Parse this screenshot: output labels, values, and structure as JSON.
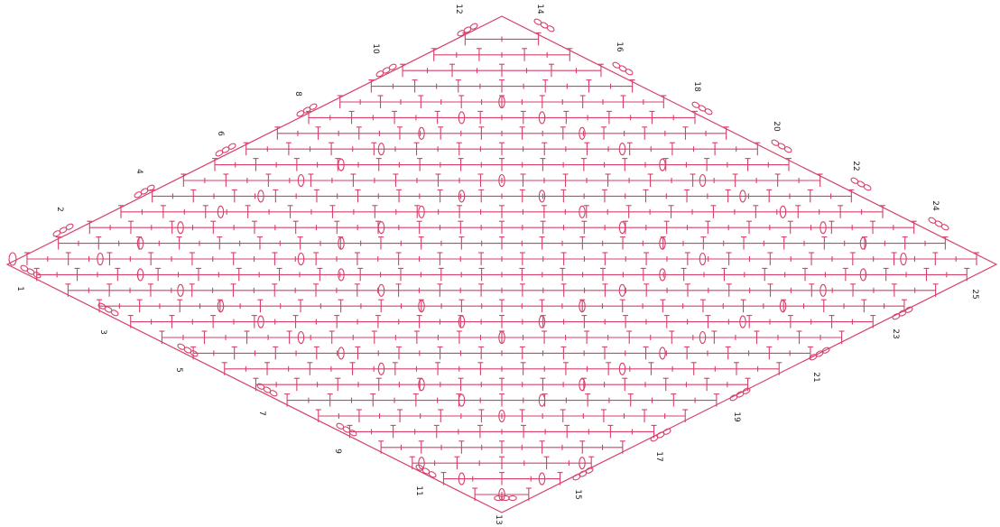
{
  "colors": {
    "ink": "#d6406a",
    "label": "#222222",
    "background": "#ffffff"
  },
  "diagram": {
    "type": "crochet-chart",
    "shape": "diamond",
    "row_labels": [
      "1",
      "2",
      "3",
      "4",
      "5",
      "6",
      "7",
      "8",
      "9",
      "10",
      "11",
      "12",
      "13",
      "14",
      "15",
      "16",
      "17",
      "18",
      "19",
      "20",
      "21",
      "22",
      "23",
      "24",
      "25"
    ]
  }
}
